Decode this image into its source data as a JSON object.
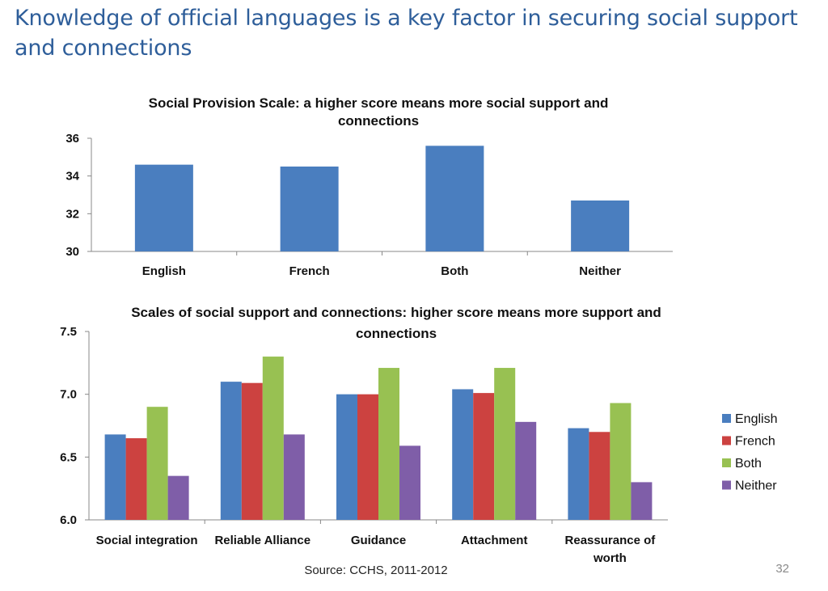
{
  "slide": {
    "title": "Knowledge of official languages is a key factor in securing social support and connections",
    "source": "Source: CCHS, 2011-2012",
    "page_number": "32"
  },
  "chart_data": [
    {
      "type": "bar",
      "title": "Social Provision Scale: a higher score means more social support and connections",
      "categories": [
        "English",
        "French",
        "Both",
        "Neither"
      ],
      "series": [
        {
          "values": [
            34.6,
            34.5,
            35.6,
            32.7
          ],
          "color": "#4a7ebf"
        }
      ],
      "ylim": [
        30,
        36
      ],
      "yticks": [
        30,
        32,
        34,
        36
      ],
      "grid": false,
      "legend": "none"
    },
    {
      "type": "bar",
      "title": "Scales of social support and connections: higher score means more support and connections",
      "categories": [
        "Social integration",
        "Reliable Alliance",
        "Guidance",
        "Attachment",
        "Reassurance of worth"
      ],
      "series": [
        {
          "name": "English",
          "values": [
            6.68,
            7.1,
            7.0,
            7.04,
            6.73
          ],
          "color": "#4a7ebf"
        },
        {
          "name": "French",
          "values": [
            6.65,
            7.09,
            7.0,
            7.01,
            6.7
          ],
          "color": "#cc4240"
        },
        {
          "name": "Both",
          "values": [
            6.9,
            7.3,
            7.21,
            7.21,
            6.93
          ],
          "color": "#98c152"
        },
        {
          "name": "Neither",
          "values": [
            6.35,
            6.68,
            6.59,
            6.78,
            6.3
          ],
          "color": "#7f5ea8"
        }
      ],
      "ylim": [
        6.0,
        7.5
      ],
      "yticks": [
        "6.0",
        "6.5",
        "7.0",
        "7.5"
      ],
      "grid": false,
      "legend": "right"
    }
  ]
}
